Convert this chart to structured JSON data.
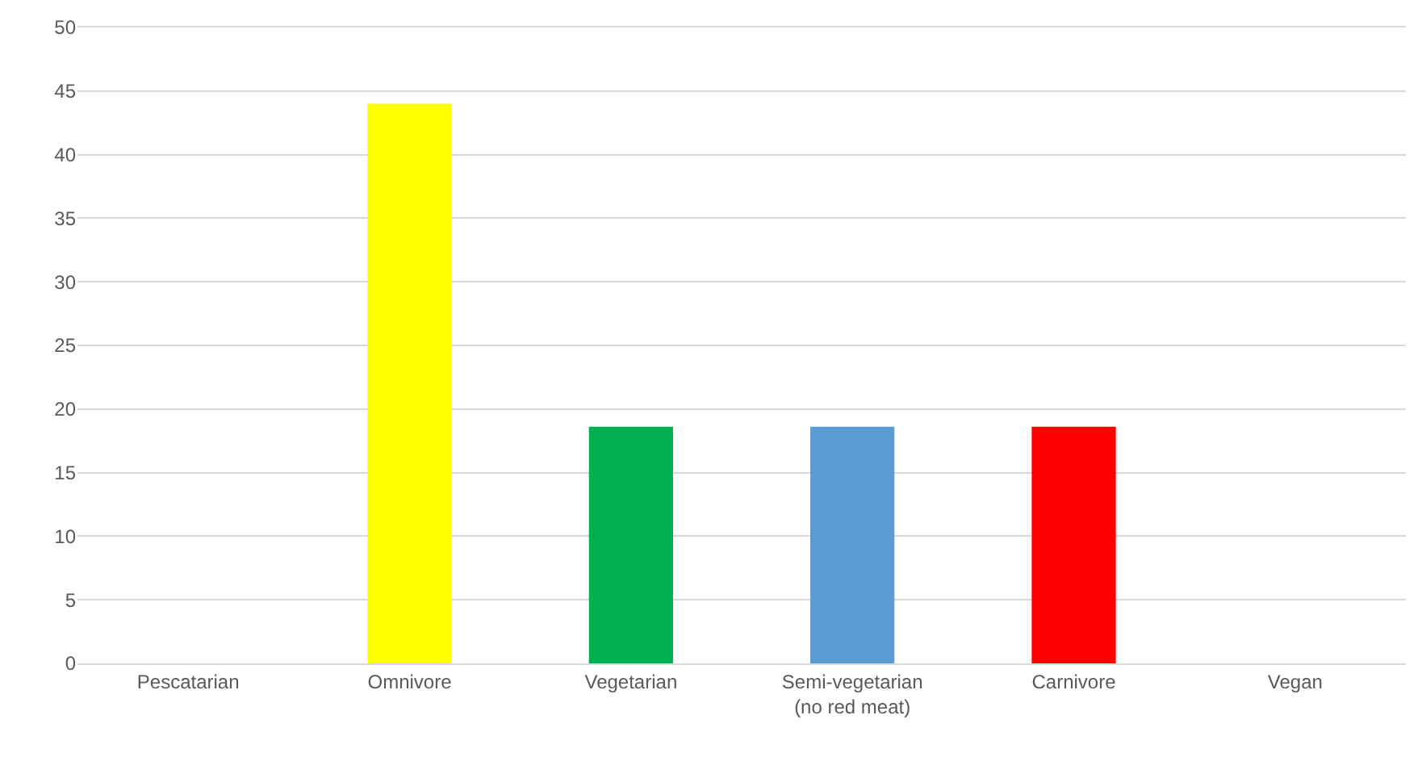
{
  "chart_data": {
    "type": "bar",
    "categories": [
      "Pescatarian",
      "Omnivore",
      "Vegetarian",
      "Semi-vegetarian\n(no red meat)",
      "Carnivore",
      "Vegan"
    ],
    "values": [
      0,
      44,
      18.6,
      18.6,
      18.6,
      0
    ],
    "colors": [
      "#4472c4",
      "#ffff00",
      "#00b050",
      "#5b9bd5",
      "#ff0000",
      "#4472c4"
    ],
    "ylim": [
      0,
      50
    ],
    "yticks": [
      0,
      5,
      10,
      15,
      20,
      25,
      30,
      35,
      40,
      45,
      50
    ],
    "grid": "y"
  }
}
